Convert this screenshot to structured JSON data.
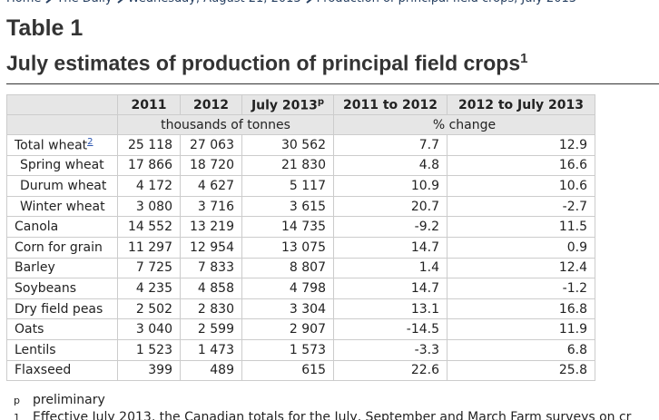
{
  "breadcrumb": [
    "Home",
    "The Daily",
    "Wednesday, August 21, 2013",
    "Production of principal field crops, July 2013"
  ],
  "title": "Table 1",
  "heading": {
    "text": "July estimates of production of principal field crops",
    "note": "1"
  },
  "table": {
    "columns": [
      {
        "label": "2011"
      },
      {
        "label": "2012"
      },
      {
        "label": "July 2013",
        "note": "p"
      },
      {
        "label": "2011 to 2012"
      },
      {
        "label": "2012 to July 2013"
      }
    ],
    "units": [
      "thousands of tonnes",
      "% change"
    ],
    "rows": [
      {
        "label": "Total wheat",
        "note": "2",
        "values": [
          "25 118",
          "27 063",
          "30 562",
          "7.7",
          "12.9"
        ],
        "children": [
          {
            "label": "Spring wheat",
            "values": [
              "17 866",
              "18 720",
              "21 830",
              "4.8",
              "16.6"
            ]
          },
          {
            "label": "Durum wheat",
            "values": [
              "4 172",
              "4 627",
              "5 117",
              "10.9",
              "10.6"
            ]
          },
          {
            "label": "Winter wheat",
            "values": [
              "3 080",
              "3 716",
              "3 615",
              "20.7",
              "-2.7"
            ]
          }
        ]
      },
      {
        "label": "Canola",
        "values": [
          "14 552",
          "13 219",
          "14 735",
          "-9.2",
          "11.5"
        ]
      },
      {
        "label": "Corn for grain",
        "values": [
          "11 297",
          "12 954",
          "13 075",
          "14.7",
          "0.9"
        ]
      },
      {
        "label": "Barley",
        "values": [
          "7 725",
          "7 833",
          "8 807",
          "1.4",
          "12.4"
        ]
      },
      {
        "label": "Soybeans",
        "values": [
          "4 235",
          "4 858",
          "4 798",
          "14.7",
          "-1.2"
        ]
      },
      {
        "label": "Dry field peas",
        "values": [
          "2 502",
          "2 830",
          "3 304",
          "13.1",
          "16.8"
        ]
      },
      {
        "label": "Oats",
        "values": [
          "3 040",
          "2 599",
          "2 907",
          "-14.5",
          "11.9"
        ]
      },
      {
        "label": "Lentils",
        "values": [
          "1 523",
          "1 473",
          "1 573",
          "-3.3",
          "6.8"
        ]
      },
      {
        "label": "Flaxseed",
        "values": [
          "399",
          "489",
          "615",
          "22.6",
          "25.8"
        ]
      }
    ]
  },
  "footnotes": [
    {
      "mark": "p",
      "text": "preliminary"
    },
    {
      "mark": "1",
      "text": "Effective July 2013, the Canadian totals for the July, September and March Farm surveys on cr"
    }
  ]
}
